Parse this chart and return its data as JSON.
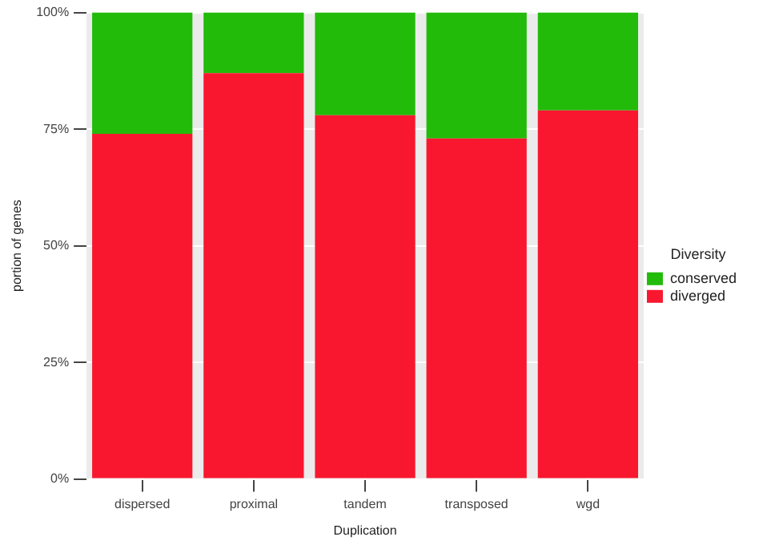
{
  "chart_data": {
    "type": "bar",
    "stacked": true,
    "xlabel": "Duplication",
    "ylabel": "portion of genes",
    "legend_title": "Diversity",
    "legend": "right",
    "categories": [
      "dispersed",
      "proximal",
      "tandem",
      "transposed",
      "wgd"
    ],
    "series": [
      {
        "name": "diverged",
        "color": "#f8172f",
        "values": [
          74,
          87,
          78,
          73,
          79
        ]
      },
      {
        "name": "conserved",
        "color": "#22bb0a",
        "values": [
          26,
          13,
          22,
          27,
          21
        ]
      }
    ],
    "ylim": [
      0,
      100
    ],
    "yticks": [
      {
        "value": 0,
        "label": "0%"
      },
      {
        "value": 25,
        "label": "25%"
      },
      {
        "value": 50,
        "label": "50%"
      },
      {
        "value": 75,
        "label": "75%"
      },
      {
        "value": 100,
        "label": "100%"
      }
    ],
    "grid": true
  }
}
